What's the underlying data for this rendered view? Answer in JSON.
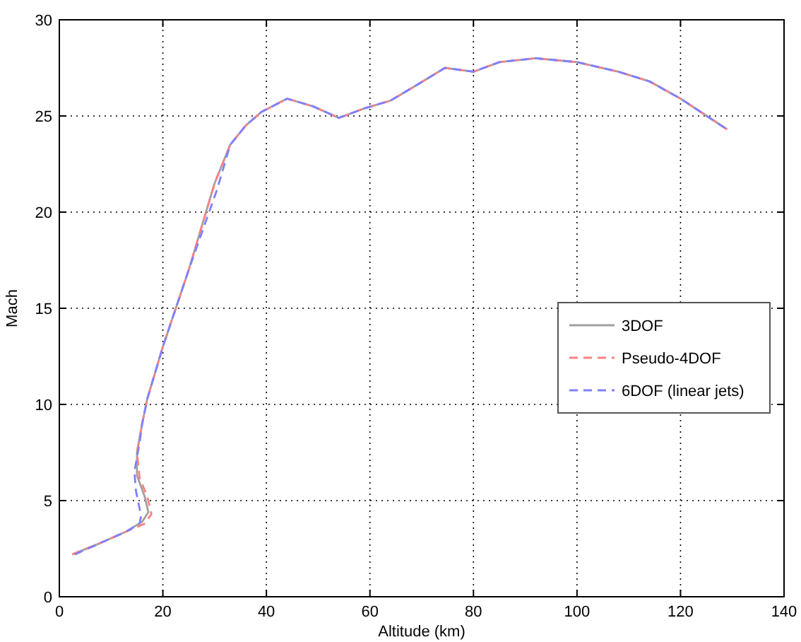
{
  "chart_data": {
    "type": "line",
    "xlabel": "Altitude (km)",
    "ylabel": "Mach",
    "xlim": [
      0,
      140
    ],
    "xticks": [
      0,
      20,
      40,
      60,
      80,
      100,
      120,
      140
    ],
    "ylim": [
      0,
      30
    ],
    "yticks": [
      0,
      5,
      10,
      15,
      20,
      25,
      30
    ],
    "grid": true,
    "legend": "right",
    "marker": "none",
    "series": [
      {
        "name": "3DOF",
        "color": "#a0a0a0",
        "line_style": "solid",
        "x": [
          2.5,
          8,
          13,
          16,
          17.2,
          16.5,
          15,
          15,
          16,
          17,
          20,
          25,
          30,
          33,
          36,
          39,
          44,
          49,
          54,
          59,
          64,
          69,
          74.5,
          80,
          85,
          92,
          100,
          108,
          114,
          120,
          129
        ],
        "values": [
          2.2,
          2.8,
          3.4,
          3.9,
          4.4,
          5.2,
          6.3,
          7.5,
          9,
          10.3,
          13,
          17,
          21.5,
          23.5,
          24.5,
          25.2,
          25.9,
          25.5,
          24.9,
          25.4,
          25.8,
          26.6,
          27.5,
          27.3,
          27.8,
          28,
          27.8,
          27.3,
          26.8,
          25.9,
          24.3
        ]
      },
      {
        "name": "Pseudo-4DOF",
        "color": "#ff8080",
        "line_style": "dashed",
        "x": [
          2.5,
          8,
          13,
          16.5,
          17.8,
          17,
          15.5,
          15,
          16,
          17,
          20,
          25,
          30,
          33,
          36,
          39,
          44,
          49,
          54,
          59,
          64,
          69,
          74.5,
          80,
          85,
          92,
          100,
          108,
          114,
          120,
          129
        ],
        "values": [
          2.2,
          2.8,
          3.4,
          3.8,
          4.3,
          5.2,
          6.2,
          7.5,
          9,
          10.3,
          13,
          17,
          21.5,
          23.5,
          24.5,
          25.2,
          25.9,
          25.5,
          24.9,
          25.4,
          25.8,
          26.6,
          27.5,
          27.3,
          27.8,
          28,
          27.8,
          27.3,
          26.8,
          25.9,
          24.3
        ]
      },
      {
        "name": "6DOF (linear jets)",
        "color": "#8080ff",
        "line_style": "dashed",
        "x": [
          3,
          8,
          13,
          15.5,
          15.8,
          14.8,
          14.5,
          15.5,
          16,
          17,
          20,
          25,
          30.5,
          33,
          36,
          39,
          44,
          49,
          54,
          59,
          64,
          69,
          74.5,
          80,
          85,
          92,
          100,
          108,
          114,
          120,
          129
        ],
        "values": [
          2.2,
          2.8,
          3.4,
          3.8,
          4.2,
          5.5,
          6.5,
          8,
          9,
          10.3,
          13,
          17,
          21.2,
          23.5,
          24.5,
          25.2,
          25.9,
          25.5,
          24.9,
          25.4,
          25.8,
          26.6,
          27.5,
          27.3,
          27.8,
          28,
          27.8,
          27.3,
          26.8,
          25.9,
          24.3
        ]
      }
    ]
  }
}
